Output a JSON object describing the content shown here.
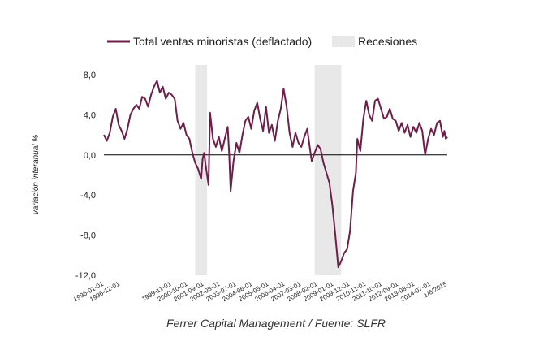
{
  "source_note": "Ferrer Capital Management / Fuente: SLFR",
  "chart_data": {
    "type": "line",
    "title": "",
    "xlabel": "",
    "ylabel": "variación interanual %",
    "ylim": [
      -12,
      8
    ],
    "yticks": [
      {
        "value": 8,
        "label": "8,0"
      },
      {
        "value": 4,
        "label": "4,0"
      },
      {
        "value": 0,
        "label": "0,0"
      },
      {
        "value": -4,
        "label": "-4,0"
      },
      {
        "value": -8,
        "label": "-8,0"
      },
      {
        "value": -12,
        "label": "-12,0"
      }
    ],
    "xlim": [
      "1996-01-01",
      "2015-06-01"
    ],
    "xticks": [
      {
        "date": "1996-01-01",
        "label": "1996-01-01"
      },
      {
        "date": "1996-12-01",
        "label": "1996-12-01"
      },
      {
        "date": "1999-11-01",
        "label": "1999-11-01"
      },
      {
        "date": "2000-10-01",
        "label": "2000-10-01"
      },
      {
        "date": "2001-09-01",
        "label": "2001-09-01"
      },
      {
        "date": "2002-08-01",
        "label": "2002-08-01"
      },
      {
        "date": "2003-07-01",
        "label": "2003-07-01"
      },
      {
        "date": "2004-06-01",
        "label": "2004-06-01"
      },
      {
        "date": "2005-05-01",
        "label": "2005-05-01"
      },
      {
        "date": "2006-04-01",
        "label": "2006-04-01"
      },
      {
        "date": "2007-03-01",
        "label": "2007-03-01"
      },
      {
        "date": "2008-02-01",
        "label": "2008-02-01"
      },
      {
        "date": "2009-01-01",
        "label": "2009-01-01"
      },
      {
        "date": "2009-12-01",
        "label": "2009-12-01"
      },
      {
        "date": "2010-11-01",
        "label": "2010-11-01"
      },
      {
        "date": "2011-10-01",
        "label": "2011-10-01"
      },
      {
        "date": "2012-09-01",
        "label": "2012-09-01"
      },
      {
        "date": "2013-08-01",
        "label": "2013-08-01"
      },
      {
        "date": "2014-07-01",
        "label": "2014-07-01"
      },
      {
        "date": "2015-06-01",
        "label": "1/6/2015"
      }
    ],
    "grid": false,
    "legend_position": "top",
    "recessions": [
      {
        "start": "2001-03-01",
        "end": "2001-11-01"
      },
      {
        "start": "2007-12-01",
        "end": "2009-06-01"
      }
    ],
    "colors": {
      "series": "#6d1f4a",
      "recession": "#e8e8e8",
      "zero_line": "#000000"
    },
    "series": [
      {
        "name": "Total ventas minoristas (deflactado)",
        "points": [
          [
            "1996-01-01",
            2.0
          ],
          [
            "1996-03-01",
            1.4
          ],
          [
            "1996-05-01",
            2.2
          ],
          [
            "1996-07-01",
            3.8
          ],
          [
            "1996-09-01",
            4.6
          ],
          [
            "1996-11-01",
            3.0
          ],
          [
            "1997-01-01",
            2.4
          ],
          [
            "1997-03-01",
            1.6
          ],
          [
            "1997-05-01",
            2.6
          ],
          [
            "1997-07-01",
            4.0
          ],
          [
            "1997-09-01",
            4.6
          ],
          [
            "1997-11-01",
            5.0
          ],
          [
            "1998-01-01",
            4.6
          ],
          [
            "1998-03-01",
            5.8
          ],
          [
            "1998-05-01",
            5.6
          ],
          [
            "1998-07-01",
            4.8
          ],
          [
            "1998-09-01",
            6.0
          ],
          [
            "1998-11-01",
            6.8
          ],
          [
            "1999-01-01",
            7.4
          ],
          [
            "1999-03-01",
            6.2
          ],
          [
            "1999-05-01",
            6.8
          ],
          [
            "1999-07-01",
            5.6
          ],
          [
            "1999-09-01",
            6.2
          ],
          [
            "1999-11-01",
            6.0
          ],
          [
            "2000-01-01",
            5.6
          ],
          [
            "2000-03-01",
            3.4
          ],
          [
            "2000-05-01",
            2.6
          ],
          [
            "2000-07-01",
            3.2
          ],
          [
            "2000-09-01",
            2.0
          ],
          [
            "2000-11-01",
            1.6
          ],
          [
            "2001-01-01",
            0.2
          ],
          [
            "2001-03-01",
            -0.8
          ],
          [
            "2001-05-01",
            -1.4
          ],
          [
            "2001-07-01",
            -2.4
          ],
          [
            "2001-08-01",
            -0.4
          ],
          [
            "2001-09-01",
            0.2
          ],
          [
            "2001-10-01",
            -1.0
          ],
          [
            "2001-11-01",
            -2.0
          ],
          [
            "2001-12-01",
            -3.0
          ],
          [
            "2002-01-01",
            4.2
          ],
          [
            "2002-03-01",
            1.6
          ],
          [
            "2002-05-01",
            0.8
          ],
          [
            "2002-07-01",
            1.8
          ],
          [
            "2002-09-01",
            0.4
          ],
          [
            "2002-11-01",
            1.6
          ],
          [
            "2003-01-01",
            2.8
          ],
          [
            "2003-02-01",
            0.0
          ],
          [
            "2003-03-01",
            -3.6
          ],
          [
            "2003-05-01",
            -0.6
          ],
          [
            "2003-07-01",
            1.2
          ],
          [
            "2003-09-01",
            0.2
          ],
          [
            "2003-11-01",
            2.0
          ],
          [
            "2004-01-01",
            3.4
          ],
          [
            "2004-03-01",
            3.8
          ],
          [
            "2004-05-01",
            2.6
          ],
          [
            "2004-07-01",
            4.4
          ],
          [
            "2004-09-01",
            5.2
          ],
          [
            "2004-11-01",
            3.6
          ],
          [
            "2005-01-01",
            2.4
          ],
          [
            "2005-03-01",
            4.8
          ],
          [
            "2005-05-01",
            2.2
          ],
          [
            "2005-07-01",
            3.0
          ],
          [
            "2005-09-01",
            1.4
          ],
          [
            "2005-11-01",
            3.4
          ],
          [
            "2006-01-01",
            4.6
          ],
          [
            "2006-03-01",
            6.6
          ],
          [
            "2006-05-01",
            4.8
          ],
          [
            "2006-07-01",
            2.2
          ],
          [
            "2006-09-01",
            0.8
          ],
          [
            "2006-11-01",
            2.2
          ],
          [
            "2007-01-01",
            1.2
          ],
          [
            "2007-03-01",
            0.8
          ],
          [
            "2007-05-01",
            1.8
          ],
          [
            "2007-07-01",
            2.6
          ],
          [
            "2007-09-01",
            0.4
          ],
          [
            "2007-10-01",
            -0.6
          ],
          [
            "2007-12-01",
            0.2
          ],
          [
            "2008-02-01",
            1.0
          ],
          [
            "2008-04-01",
            0.6
          ],
          [
            "2008-06-01",
            -0.8
          ],
          [
            "2008-08-01",
            -1.8
          ],
          [
            "2008-10-01",
            -2.8
          ],
          [
            "2008-12-01",
            -5.0
          ],
          [
            "2009-02-01",
            -8.0
          ],
          [
            "2009-04-01",
            -11.2
          ],
          [
            "2009-06-01",
            -10.6
          ],
          [
            "2009-08-01",
            -9.8
          ],
          [
            "2009-10-01",
            -9.4
          ],
          [
            "2009-12-01",
            -7.6
          ],
          [
            "2010-02-01",
            -3.6
          ],
          [
            "2010-04-01",
            -1.8
          ],
          [
            "2010-05-01",
            1.6
          ],
          [
            "2010-07-01",
            0.4
          ],
          [
            "2010-09-01",
            3.6
          ],
          [
            "2010-11-01",
            5.4
          ],
          [
            "2011-01-01",
            4.0
          ],
          [
            "2011-03-01",
            3.4
          ],
          [
            "2011-05-01",
            5.4
          ],
          [
            "2011-07-01",
            5.6
          ],
          [
            "2011-09-01",
            4.6
          ],
          [
            "2011-11-01",
            3.6
          ],
          [
            "2012-01-01",
            3.8
          ],
          [
            "2012-03-01",
            4.6
          ],
          [
            "2012-05-01",
            3.6
          ],
          [
            "2012-07-01",
            3.4
          ],
          [
            "2012-09-01",
            2.4
          ],
          [
            "2012-11-01",
            3.2
          ],
          [
            "2013-01-01",
            2.2
          ],
          [
            "2013-03-01",
            3.0
          ],
          [
            "2013-05-01",
            1.8
          ],
          [
            "2013-07-01",
            2.8
          ],
          [
            "2013-09-01",
            2.2
          ],
          [
            "2013-11-01",
            3.2
          ],
          [
            "2014-01-01",
            2.4
          ],
          [
            "2014-02-01",
            1.0
          ],
          [
            "2014-03-01",
            0.0
          ],
          [
            "2014-05-01",
            1.6
          ],
          [
            "2014-07-01",
            2.6
          ],
          [
            "2014-09-01",
            2.0
          ],
          [
            "2014-11-01",
            3.2
          ],
          [
            "2015-01-01",
            3.4
          ],
          [
            "2015-03-01",
            1.8
          ],
          [
            "2015-04-01",
            2.4
          ],
          [
            "2015-05-01",
            1.6
          ],
          [
            "2015-06-01",
            1.8
          ]
        ]
      }
    ],
    "recession_label": "Recesiones"
  }
}
